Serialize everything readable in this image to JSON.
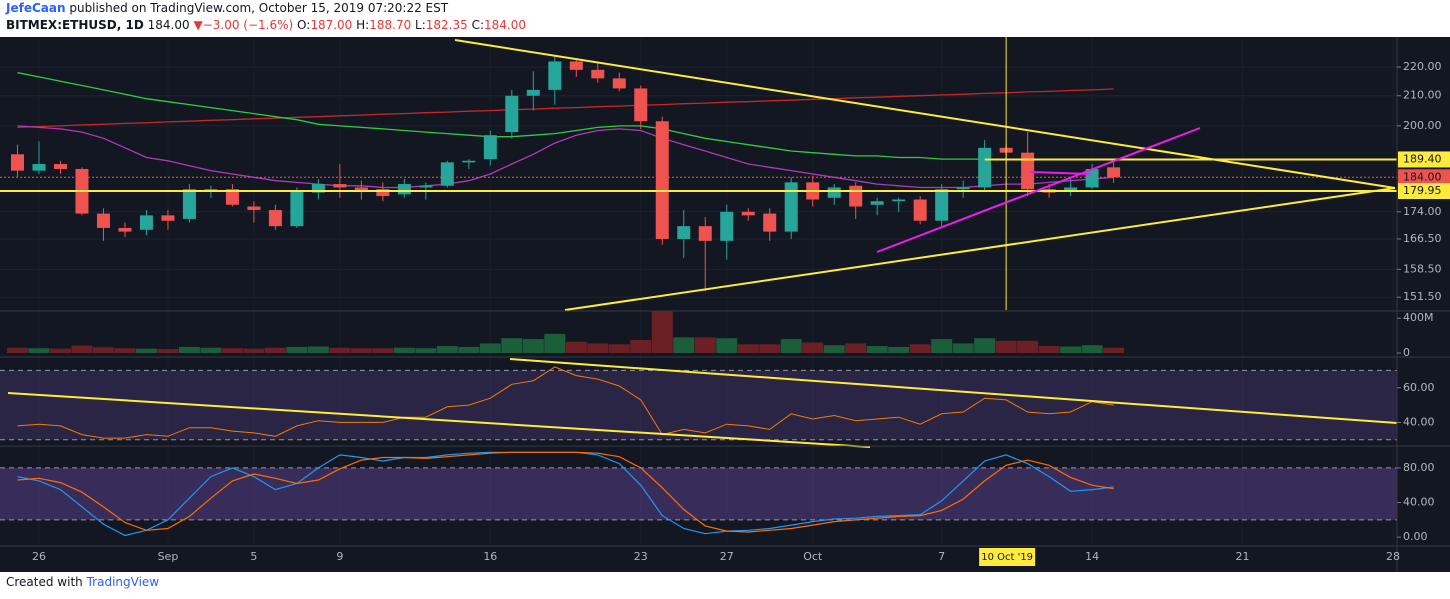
{
  "header": {
    "author": "JefeCaan",
    "published": "published on TradingView.com, October 15, 2019 07:20:22 EST",
    "symbol": "BITMEX:ETHUSD, 1D",
    "last": "184.00",
    "arrow": "▼",
    "change": "−3.00 (−1.6%)",
    "ohlc": [
      {
        "label": "O:",
        "value": "187.00"
      },
      {
        "label": "H:",
        "value": "188.70"
      },
      {
        "label": "L:",
        "value": "182.35"
      },
      {
        "label": "C:",
        "value": "184.00"
      }
    ]
  },
  "footer": {
    "created": "Created with",
    "brand": "TradingView"
  },
  "chart_data": {
    "type": "candlestick",
    "yscale": "log",
    "grid": true,
    "ylim": [
      148.4,
      230.6
    ],
    "yticks": [
      {
        "value": 151.5,
        "label": "151.50"
      },
      {
        "value": 158.5,
        "label": "158.50"
      },
      {
        "value": 166.5,
        "label": "166.50"
      },
      {
        "value": 174,
        "label": "174.00"
      },
      {
        "value": 200,
        "label": "200.00"
      },
      {
        "value": 210,
        "label": "210.00"
      },
      {
        "value": 220,
        "label": "220.00"
      }
    ],
    "xlim": [
      "2019-08-24",
      "2019-10-28"
    ],
    "xticks": [
      {
        "value": "2019-08-26",
        "label": "26"
      },
      {
        "value": "2019-09-01",
        "label": "Sep"
      },
      {
        "value": "2019-09-05",
        "label": "5"
      },
      {
        "value": "2019-09-09",
        "label": "9"
      },
      {
        "value": "2019-09-16",
        "label": "16"
      },
      {
        "value": "2019-09-23",
        "label": "23"
      },
      {
        "value": "2019-09-27",
        "label": "27"
      },
      {
        "value": "2019-10-01",
        "label": "Oct"
      },
      {
        "value": "2019-10-07",
        "label": "7"
      },
      {
        "value": "2019-10-14",
        "label": "14"
      },
      {
        "value": "2019-10-21",
        "label": "21"
      },
      {
        "value": "2019-10-28",
        "label": "28"
      }
    ],
    "up_color": "#26a69a",
    "down_color": "#ef5350",
    "x": [
      "2019-08-25",
      "2019-08-26",
      "2019-08-27",
      "2019-08-28",
      "2019-08-29",
      "2019-08-30",
      "2019-08-31",
      "2019-09-01",
      "2019-09-02",
      "2019-09-03",
      "2019-09-04",
      "2019-09-05",
      "2019-09-06",
      "2019-09-07",
      "2019-09-08",
      "2019-09-09",
      "2019-09-10",
      "2019-09-11",
      "2019-09-12",
      "2019-09-13",
      "2019-09-14",
      "2019-09-15",
      "2019-09-16",
      "2019-09-17",
      "2019-09-18",
      "2019-09-19",
      "2019-09-20",
      "2019-09-21",
      "2019-09-22",
      "2019-09-23",
      "2019-09-24",
      "2019-09-25",
      "2019-09-26",
      "2019-09-27",
      "2019-09-28",
      "2019-09-29",
      "2019-09-30",
      "2019-10-01",
      "2019-10-02",
      "2019-10-03",
      "2019-10-04",
      "2019-10-05",
      "2019-10-06",
      "2019-10-07",
      "2019-10-08",
      "2019-10-09",
      "2019-10-10",
      "2019-10-11",
      "2019-10-12",
      "2019-10-13",
      "2019-10-14",
      "2019-10-15"
    ],
    "open": [
      191,
      186,
      188,
      186.5,
      173.5,
      169.5,
      169,
      173,
      172,
      180,
      180.5,
      175.5,
      174.5,
      170,
      179.5,
      182,
      181,
      180.5,
      179,
      181,
      181.5,
      188.5,
      189.5,
      198,
      210,
      212,
      222,
      219,
      216,
      212.5,
      201.5,
      166.5,
      170,
      166,
      174,
      173.5,
      168.5,
      182.5,
      178,
      181.5,
      176,
      177,
      177.5,
      171.5,
      180.5,
      181,
      193,
      191.5,
      180.5,
      180,
      181,
      187
    ],
    "high": [
      194,
      195,
      189,
      187,
      175,
      171,
      174.5,
      174.5,
      182,
      181.5,
      182,
      177,
      176,
      181,
      183.5,
      188,
      183,
      182.5,
      183.5,
      182.5,
      189,
      189.5,
      198.5,
      212,
      218.5,
      224,
      223,
      222,
      218,
      213.5,
      203,
      174.5,
      172.5,
      176,
      175,
      175,
      184,
      184.5,
      182,
      182.5,
      178,
      178,
      178.5,
      182,
      183,
      195.5,
      194,
      198,
      182,
      184,
      188,
      188.7
    ],
    "low": [
      184,
      185,
      185,
      173,
      166,
      167,
      167.5,
      169,
      171,
      178,
      175.5,
      171,
      169,
      169.5,
      177.5,
      178,
      177.5,
      177,
      178,
      177.5,
      181,
      186.5,
      187.5,
      196,
      205,
      207,
      216.5,
      214.5,
      211.5,
      199,
      165,
      161.5,
      153,
      161,
      171.5,
      166,
      166.5,
      175.5,
      176,
      172,
      173,
      174,
      170.5,
      170,
      178,
      180,
      189,
      178.5,
      178,
      178.5,
      180.5,
      182.35
    ],
    "close": [
      186,
      188,
      186.5,
      173.5,
      169.5,
      168.5,
      173,
      171.5,
      180.5,
      180.5,
      176,
      174.5,
      170,
      180,
      182,
      181,
      180,
      178.5,
      182,
      181.5,
      188.5,
      189,
      197,
      210,
      212,
      222,
      219,
      216,
      212.5,
      201.5,
      166.5,
      170,
      166,
      174,
      173,
      168.5,
      182.5,
      177.5,
      181,
      175.5,
      177,
      177.5,
      171.5,
      180.5,
      181,
      193,
      191.5,
      180.5,
      179.5,
      181,
      186.5,
      184
    ],
    "moving_averages": [
      {
        "color": "#c62828",
        "values": [
          199.5,
          199.8,
          200,
          200.3,
          200.5,
          200.8,
          201,
          201.3,
          201.5,
          201.8,
          202,
          202.3,
          202.5,
          202.8,
          203,
          203.3,
          203.5,
          203.8,
          204,
          204.3,
          204.5,
          204.8,
          205,
          205.3,
          205.5,
          205.8,
          206,
          206.3,
          206.5,
          206.8,
          207,
          207.3,
          207.5,
          207.8,
          208,
          208.3,
          208.5,
          208.8,
          209,
          209.3,
          209.5,
          209.8,
          210,
          210.3,
          210.5,
          210.8,
          211,
          211.3,
          211.5,
          211.8,
          212,
          212.3
        ]
      },
      {
        "color": "#2ecc40",
        "values": [
          218,
          216.5,
          215,
          213.5,
          212,
          210.5,
          209,
          208,
          207,
          206,
          205,
          204,
          203,
          202,
          200.5,
          200,
          199.5,
          199,
          198.5,
          198,
          197.5,
          197,
          196.5,
          196.5,
          197,
          197.5,
          198.5,
          199.5,
          200,
          200,
          199,
          197.5,
          196,
          195,
          194,
          193,
          192,
          191.5,
          191,
          190.5,
          190.5,
          190,
          190,
          189.5,
          189.5,
          189.5,
          189.5,
          189.5,
          189.5,
          189.5,
          189.5,
          189.5
        ]
      },
      {
        "color": "#b03ab8",
        "values": [
          200,
          199.5,
          199,
          198,
          196,
          193,
          190,
          189,
          187.5,
          186,
          185,
          184,
          183,
          182.5,
          182,
          181.5,
          181.5,
          181,
          181,
          181.5,
          182,
          183,
          185,
          188,
          191,
          194.5,
          197,
          198.5,
          199,
          198.5,
          196,
          194,
          192,
          190,
          188,
          187,
          186,
          185,
          184,
          183,
          182,
          181.5,
          181,
          181,
          181,
          181.5,
          182,
          182,
          182.5,
          183,
          183.5,
          184
        ]
      }
    ],
    "price_lines": [
      {
        "value": 189.4,
        "label": "189.40",
        "color": "#ffeb3b",
        "from": "2019-10-09"
      },
      {
        "value": 184,
        "label": "184.00",
        "color": "#ef5350"
      },
      {
        "value": 179.95,
        "label": "179.95",
        "color": "#ffeb3b"
      }
    ],
    "crosshair": {
      "date": "2019-10-10",
      "label": "10 Oct '19"
    },
    "volume": {
      "ylim": [
        0,
        460
      ],
      "yticks": [
        {
          "value": 400,
          "label": "400M"
        },
        0
      ],
      "up_color": "#1b5e3a",
      "down_color": "#6d1f26",
      "values": [
        60,
        55,
        50,
        85,
        65,
        55,
        50,
        45,
        70,
        60,
        55,
        50,
        60,
        70,
        75,
        60,
        55,
        55,
        60,
        55,
        80,
        70,
        110,
        170,
        160,
        220,
        130,
        110,
        100,
        150,
        480,
        180,
        180,
        170,
        100,
        100,
        160,
        120,
        90,
        110,
        80,
        70,
        100,
        160,
        110,
        170,
        140,
        140,
        80,
        75,
        90,
        60
      ]
    },
    "rsi": {
      "ylim": [
        27,
        76
      ],
      "yticks": [
        {
          "value": 60,
          "label": "60.00"
        },
        {
          "value": 40,
          "label": "40.00"
        }
      ],
      "bands": [
        30,
        70
      ],
      "color": "#f57c00",
      "values": [
        38,
        39,
        38,
        33,
        31,
        31,
        33,
        32,
        37,
        37,
        35,
        34,
        32,
        38,
        41,
        40,
        40,
        40,
        43,
        43,
        49,
        50,
        54,
        62,
        64,
        72,
        67,
        65,
        61,
        53,
        33,
        36,
        34,
        39,
        38,
        36,
        45,
        42,
        44,
        41,
        42,
        43,
        39,
        45,
        46,
        54,
        53,
        46,
        45,
        46,
        52,
        50
      ]
    },
    "stoch": {
      "ylim": [
        -9,
        103
      ],
      "yticks": [
        {
          "value": 80,
          "label": "80.00"
        },
        {
          "value": 40,
          "label": "40.00"
        },
        {
          "value": 0,
          "label": "0.00"
        }
      ],
      "bands": [
        20,
        80
      ],
      "k": {
        "color": "#2196f3",
        "values": [
          70,
          65,
          55,
          35,
          15,
          2,
          8,
          20,
          45,
          70,
          80,
          70,
          55,
          62,
          80,
          95,
          92,
          88,
          92,
          92,
          95,
          97,
          98,
          98,
          98,
          98,
          98,
          95,
          85,
          60,
          25,
          10,
          4,
          7,
          8,
          10,
          14,
          18,
          21,
          22,
          24,
          25,
          26,
          42,
          65,
          88,
          95,
          85,
          70,
          53,
          55,
          58
        ]
      },
      "d": {
        "color": "#ff6d00",
        "values": [
          66,
          68,
          63,
          52,
          35,
          17,
          8,
          10,
          24,
          45,
          65,
          73,
          68,
          62,
          66,
          79,
          89,
          92,
          92,
          91,
          93,
          95,
          97,
          98,
          98,
          98,
          98,
          97,
          93,
          80,
          57,
          32,
          13,
          7,
          6,
          8,
          10,
          14,
          18,
          20,
          22,
          24,
          25,
          31,
          44,
          65,
          83,
          89,
          83,
          69,
          60,
          56
        ]
      }
    }
  }
}
